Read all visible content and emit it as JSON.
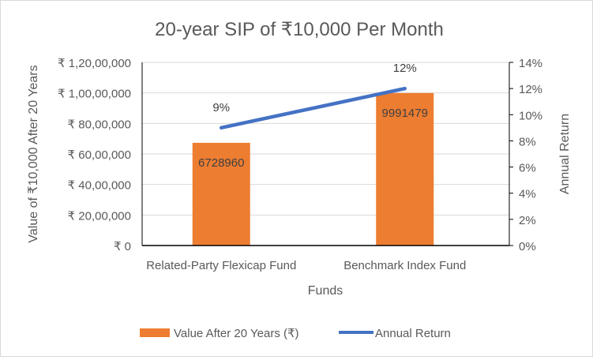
{
  "chart_data": {
    "type": "bar+line",
    "title": "20-year SIP of ₹10,000 Per Month",
    "xlabel": "Funds",
    "ylabel": "Value of ₹10,000 After 20 Years",
    "y2label": "Annual Return",
    "categories": [
      "Related-Party Flexicap Fund",
      "Benchmark Index Fund"
    ],
    "series": [
      {
        "name": "Value After 20 Years (₹)",
        "type": "bar",
        "axis": "left",
        "color": "#ed7d31",
        "values": [
          6728960,
          9991479
        ],
        "labels": [
          "6728960",
          "9991479"
        ]
      },
      {
        "name": "Annual Return",
        "type": "line",
        "axis": "right",
        "color": "#4472c4",
        "values": [
          9,
          12
        ],
        "labels": [
          "9%",
          "12%"
        ]
      }
    ],
    "ylim": [
      0,
      12000000
    ],
    "yticks": [
      0,
      2000000,
      4000000,
      6000000,
      8000000,
      10000000,
      12000000
    ],
    "ytick_labels": [
      "₹ 0",
      "₹ 20,00,000",
      "₹ 40,00,000",
      "₹ 60,00,000",
      "₹ 80,00,000",
      "₹ 1,00,00,000",
      "₹ 1,20,00,000"
    ],
    "y2lim": [
      0,
      14
    ],
    "y2ticks": [
      0,
      2,
      4,
      6,
      8,
      10,
      12,
      14
    ],
    "y2tick_labels": [
      "0%",
      "2%",
      "4%",
      "6%",
      "8%",
      "10%",
      "12%",
      "14%"
    ],
    "grid": true,
    "legend": "bottom"
  }
}
